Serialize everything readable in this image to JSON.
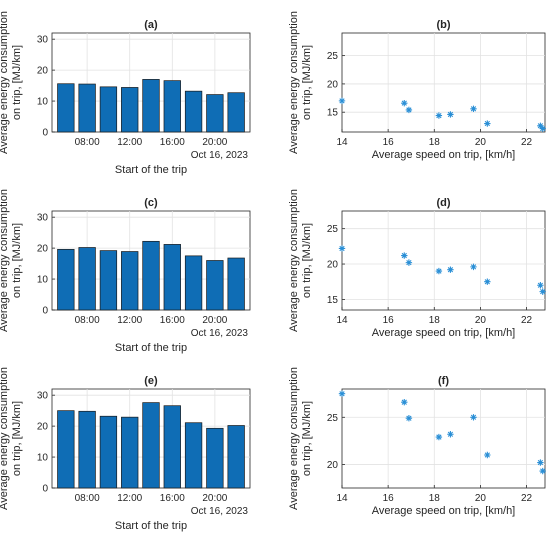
{
  "colors": {
    "bar_fill": "#0f6db5",
    "marker": "#2a8fd6",
    "grid": "#e2e2e2"
  },
  "chart_data": [
    {
      "id": "a",
      "type": "bar",
      "title": "(a)",
      "ylabel": "Average energy consumption on trip, [MJ/km]",
      "xlabel": "Start of the trip",
      "x_tick_labels": [
        "08:00",
        "12:00",
        "16:00",
        "20:00"
      ],
      "x_secondary_label": "Oct 16, 2023",
      "values": [
        15.6,
        15.5,
        14.6,
        14.4,
        17.0,
        16.6,
        13.2,
        12.1,
        12.7
      ],
      "ylim": [
        0,
        32
      ],
      "yticks": [
        0,
        10,
        20,
        30
      ],
      "grid": true
    },
    {
      "id": "b",
      "type": "scatter",
      "title": "(b)",
      "ylabel": "Average energy consumption on trip, [MJ/km]",
      "xlabel": "Average speed on trip, [km/h]",
      "x": [
        14.0,
        16.7,
        16.9,
        18.2,
        18.7,
        19.7,
        20.3,
        22.6,
        22.7
      ],
      "y": [
        17.0,
        16.6,
        15.4,
        14.4,
        14.6,
        15.6,
        13.0,
        12.6,
        12.1
      ],
      "xlim": [
        14,
        22.8
      ],
      "xticks": [
        14,
        16,
        18,
        20,
        22
      ],
      "ylim": [
        11.5,
        29
      ],
      "yticks": [
        15,
        20,
        25
      ],
      "grid": true
    },
    {
      "id": "c",
      "type": "bar",
      "title": "(c)",
      "ylabel": "Average energy consumption on trip, [MJ/km]",
      "xlabel": "Start of the trip",
      "x_tick_labels": [
        "08:00",
        "12:00",
        "16:00",
        "20:00"
      ],
      "x_secondary_label": "Oct 16, 2023",
      "values": [
        19.6,
        20.2,
        19.2,
        18.9,
        22.2,
        21.2,
        17.5,
        16.0,
        16.8
      ],
      "ylim": [
        0,
        32
      ],
      "yticks": [
        0,
        10,
        20,
        30
      ],
      "grid": true
    },
    {
      "id": "d",
      "type": "scatter",
      "title": "(d)",
      "ylabel": "Average energy consumption on trip, [MJ/km]",
      "xlabel": "Average speed on trip, [km/h]",
      "x": [
        14.0,
        16.7,
        16.9,
        18.2,
        18.7,
        19.7,
        20.3,
        22.6,
        22.7
      ],
      "y": [
        22.2,
        21.2,
        20.2,
        19.0,
        19.2,
        19.6,
        17.5,
        17.0,
        16.1
      ],
      "xlim": [
        14,
        22.8
      ],
      "xticks": [
        14,
        16,
        18,
        20,
        22
      ],
      "ylim": [
        13.5,
        27.5
      ],
      "yticks": [
        15,
        20,
        25
      ],
      "grid": true
    },
    {
      "id": "e",
      "type": "bar",
      "title": "(e)",
      "ylabel": "Average energy consumption on trip, [MJ/km]",
      "xlabel": "Start of the trip",
      "x_tick_labels": [
        "08:00",
        "12:00",
        "16:00",
        "20:00"
      ],
      "x_secondary_label": "Oct 16, 2023",
      "values": [
        25.0,
        24.8,
        23.2,
        22.9,
        27.6,
        26.6,
        21.1,
        19.3,
        20.2
      ],
      "ylim": [
        0,
        32
      ],
      "yticks": [
        0,
        10,
        20,
        30
      ],
      "grid": true
    },
    {
      "id": "f",
      "type": "scatter",
      "title": "(f)",
      "ylabel": "Average energy consumption on trip, [MJ/km]",
      "xlabel": "Average speed on trip, [km/h]",
      "x": [
        14.0,
        16.7,
        16.9,
        18.2,
        18.7,
        19.7,
        20.3,
        22.6,
        22.7
      ],
      "y": [
        27.5,
        26.6,
        24.9,
        22.9,
        23.2,
        25.0,
        21.0,
        20.2,
        19.3
      ],
      "xlim": [
        14,
        22.8
      ],
      "xticks": [
        14,
        16,
        18,
        20,
        22
      ],
      "ylim": [
        17.5,
        28
      ],
      "yticks": [
        20,
        25
      ],
      "grid": true
    }
  ]
}
